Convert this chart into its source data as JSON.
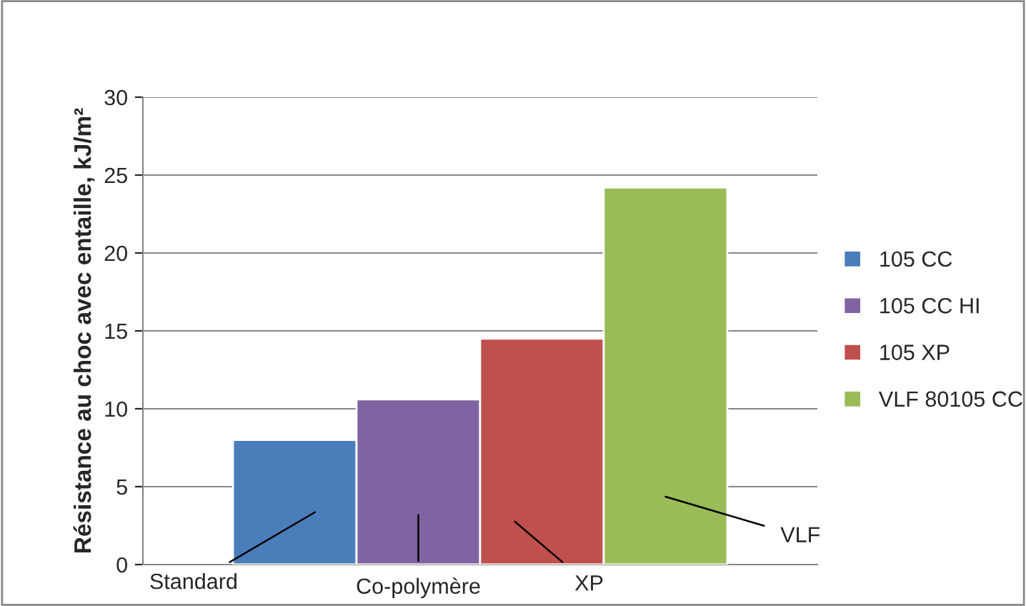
{
  "chart_data": {
    "type": "bar",
    "ylabel": "Résistance au choc avec entaille, kJ/m²",
    "categories": [
      null
    ],
    "series": [
      {
        "name": "105 CC",
        "color": "#4a7ebb",
        "values": [
          8.0
        ]
      },
      {
        "name": "105 CC HI",
        "color": "#7f63a2",
        "values": [
          10.6
        ]
      },
      {
        "name": "105 XP",
        "color": "#c0504d",
        "values": [
          14.5
        ]
      },
      {
        "name": "VLF 80105 CC",
        "color": "#9bbb59",
        "values": [
          24.2
        ]
      }
    ],
    "annotations": [
      "Standard",
      "Co-polymère",
      "XP",
      "VLF"
    ],
    "ylim": [
      0,
      30
    ],
    "yticks": [
      0,
      5,
      10,
      15,
      20,
      25,
      30
    ],
    "grid": "y",
    "legend": "right"
  }
}
